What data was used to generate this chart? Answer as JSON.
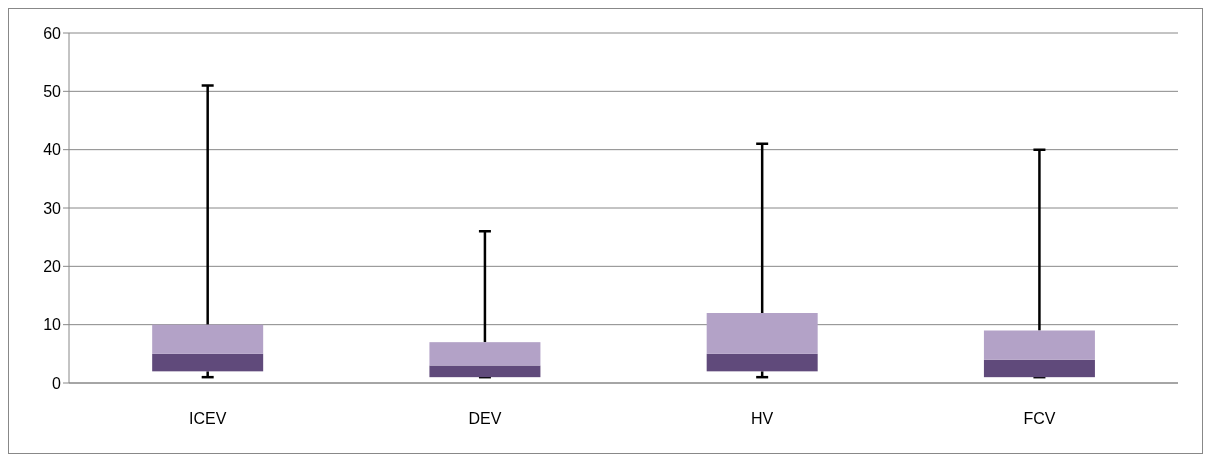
{
  "chart_data": {
    "type": "box",
    "categories": [
      "ICEV",
      "DEV",
      "HV",
      "FCV"
    ],
    "series": [
      {
        "color": "#b3a2c7",
        "colors": [
          "#604a7b",
          "#604a7b",
          "#604a7b",
          "#604a7b"
        ],
        "boxes": [
          {
            "low": 1,
            "q1": 2,
            "median": 5,
            "q3": 10,
            "high": 51
          },
          {
            "low": 1,
            "q1": 1,
            "median": 3,
            "q3": 7,
            "high": 26
          },
          {
            "low": 1,
            "q1": 2,
            "median": 5,
            "q3": 12,
            "high": 41
          },
          {
            "low": 1,
            "q1": 1,
            "median": 4,
            "q3": 9,
            "high": 40
          }
        ]
      }
    ],
    "ylim": [
      0,
      60
    ],
    "yticks": [
      0,
      10,
      20,
      30,
      40,
      50,
      60
    ],
    "grid": "y",
    "legend": false
  }
}
